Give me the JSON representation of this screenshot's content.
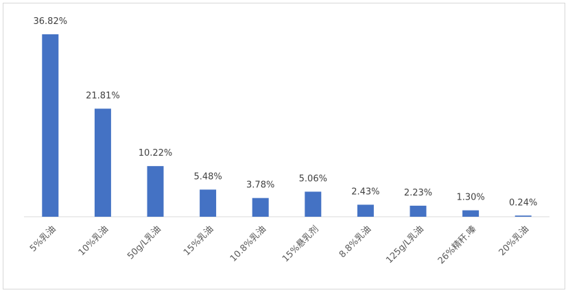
{
  "chart_data": {
    "type": "bar",
    "categories": [
      "5%乳油",
      "10%乳油",
      "50g/L乳油",
      "15%乳油",
      "10.8%乳油",
      "15%悬乳剂",
      "8.8%乳油",
      "125g/L乳油",
      "26%精秆.嗪",
      "20%乳油"
    ],
    "values": [
      36.82,
      21.81,
      10.22,
      5.48,
      3.78,
      5.06,
      2.43,
      2.23,
      1.3,
      0.24
    ],
    "data_labels": [
      "36.82%",
      "21.81%",
      "10.22%",
      "5.48%",
      "3.78%",
      "5.06%",
      "2.43%",
      "2.23%",
      "1.30%",
      "0.24%"
    ],
    "title": "",
    "xlabel": "",
    "ylabel": "",
    "ylim": [
      0,
      40
    ],
    "grid": false,
    "legend": "none",
    "bar_color": "#4472C4",
    "axis_color": "#D9D9D9"
  }
}
